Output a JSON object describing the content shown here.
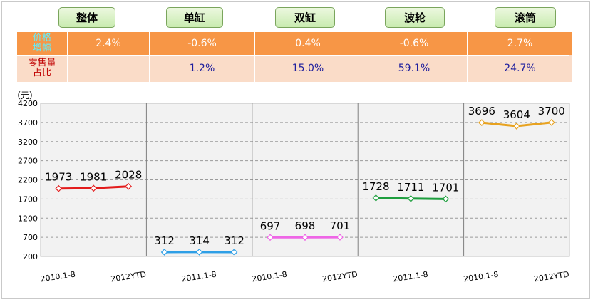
{
  "header_buttons": [
    {
      "label": "整体"
    },
    {
      "label": "单缸"
    },
    {
      "label": "双缸"
    },
    {
      "label": "波轮"
    },
    {
      "label": "滚筒"
    }
  ],
  "table": {
    "price_label_line1": "价格",
    "price_label_line2": "增幅",
    "price_values": [
      "2.4%",
      "-0.6%",
      "0.4%",
      "-0.6%",
      "2.7%"
    ],
    "share_label_line1": "零售量",
    "share_label_line2": "占比",
    "share_values": [
      "",
      "1.2%",
      "15.0%",
      "59.1%",
      "24.7%"
    ]
  },
  "chart_data": {
    "type": "line",
    "ylabel": "（元）",
    "ylim": [
      200,
      4200
    ],
    "yticks": [
      200,
      700,
      1200,
      1700,
      2200,
      2700,
      3200,
      3700,
      4200
    ],
    "x_tick_labels": [
      "2010.1-8",
      "2012YTD",
      "2011.1-8",
      "2010.1-8",
      "2012YTD",
      "2011.1-8",
      "2010.1-8",
      "2012YTD"
    ],
    "grid": true,
    "panels": [
      {
        "label": "整体",
        "color": "#e31b1b",
        "x": [
          "2010.1-8",
          "2011.1-8",
          "2012YTD"
        ],
        "values": [
          1973,
          1981,
          2028
        ]
      },
      {
        "label": "单缸",
        "color": "#2e9fe6",
        "x": [
          "2010.1-8",
          "2011.1-8",
          "2012YTD"
        ],
        "values": [
          312,
          314,
          312
        ]
      },
      {
        "label": "双缸",
        "color": "#ee66e6",
        "x": [
          "2010.1-8",
          "2011.1-8",
          "2012YTD"
        ],
        "values": [
          697,
          698,
          701
        ]
      },
      {
        "label": "波轮",
        "color": "#1e9e3e",
        "x": [
          "2010.1-8",
          "2011.1-8",
          "2012YTD"
        ],
        "values": [
          1728,
          1711,
          1701
        ]
      },
      {
        "label": "滚筒",
        "color": "#e8a21f",
        "x": [
          "2010.1-8",
          "2011.1-8",
          "2012YTD"
        ],
        "values": [
          3696,
          3604,
          3700
        ]
      }
    ]
  }
}
